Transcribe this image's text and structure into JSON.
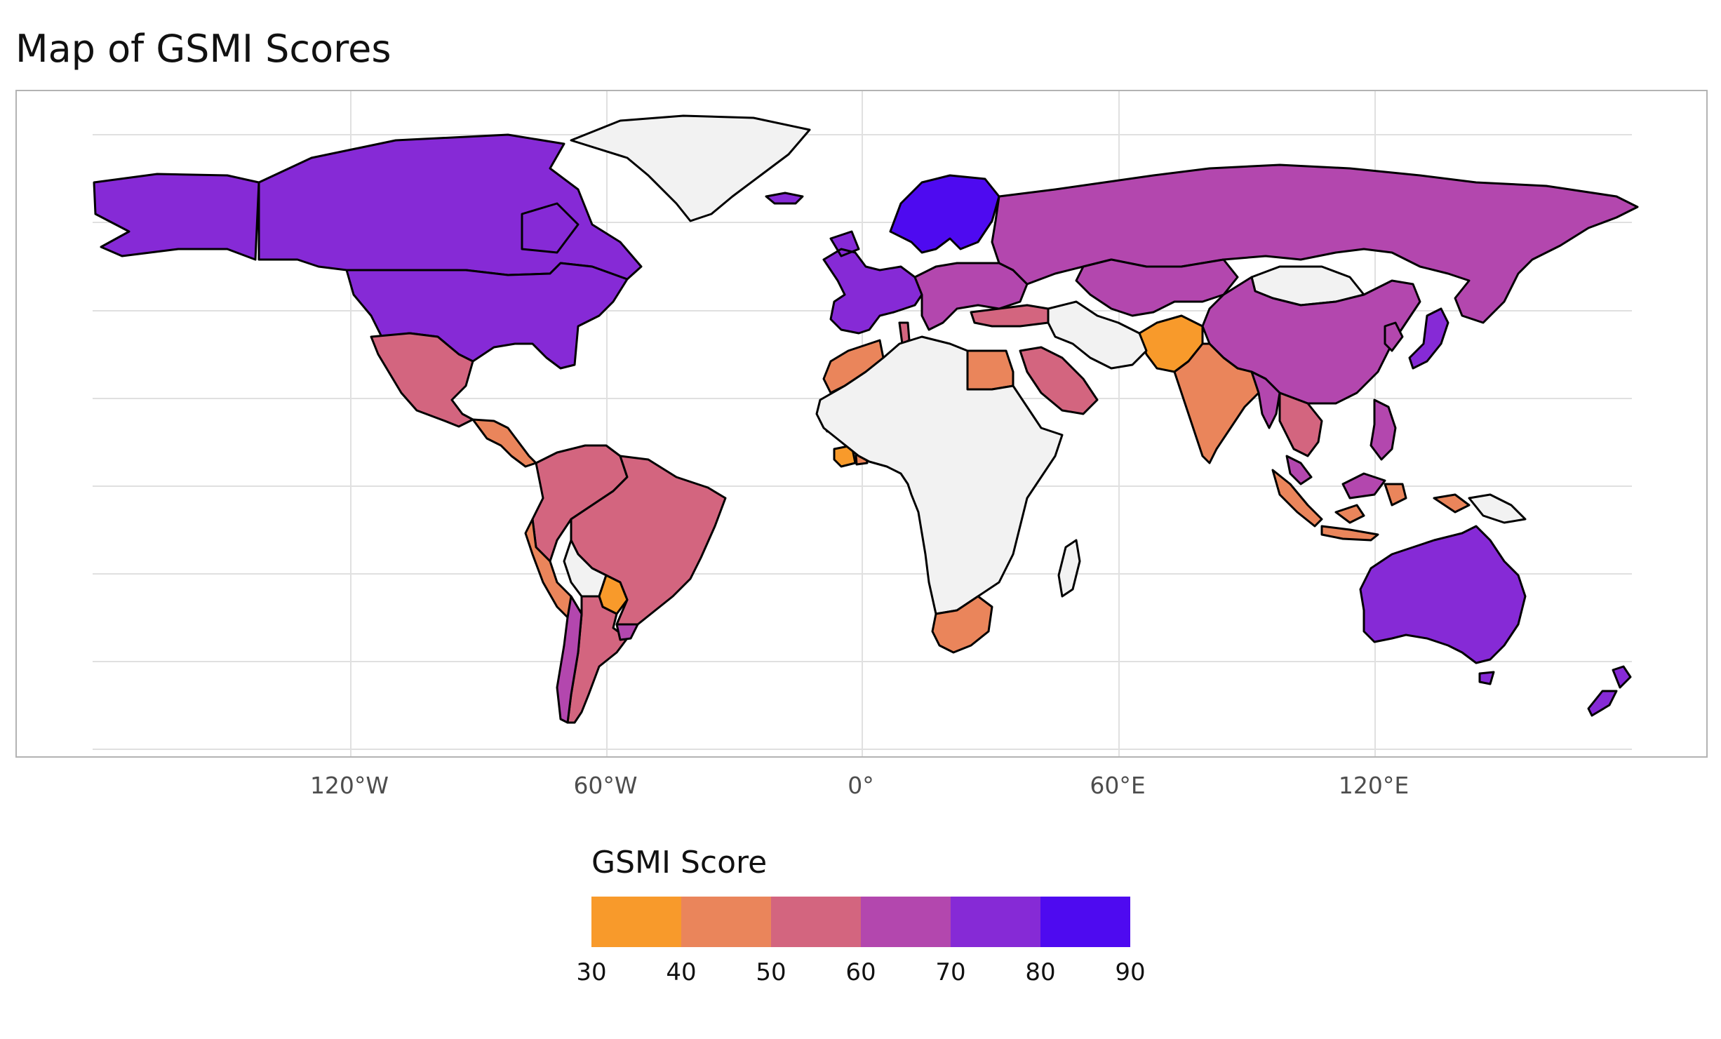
{
  "title": "Map of GSMI Scores",
  "map": {
    "projection": "equirectangular",
    "longitude_ticks": [
      "120°W",
      "60°W",
      "0°",
      "60°E",
      "120°E"
    ],
    "no_data_fill": "#f2f2f2",
    "border_color": "#000000",
    "grid_color": "#e0e0e0",
    "regions": [
      {
        "name": "Canada",
        "score_bin": "70-80"
      },
      {
        "name": "United States",
        "score_bin": "70-80"
      },
      {
        "name": "Alaska",
        "score_bin": "70-80"
      },
      {
        "name": "Greenland",
        "score_bin": "no data"
      },
      {
        "name": "Mexico",
        "score_bin": "50-60"
      },
      {
        "name": "Central America",
        "score_bin": "40-50"
      },
      {
        "name": "Colombia / Venezuela / Peru",
        "score_bin": "50-60"
      },
      {
        "name": "Ecuador / Peru coast",
        "score_bin": "40-50"
      },
      {
        "name": "Brazil",
        "score_bin": "50-60"
      },
      {
        "name": "Bolivia",
        "score_bin": "no data"
      },
      {
        "name": "Paraguay",
        "score_bin": "30-40"
      },
      {
        "name": "Argentina",
        "score_bin": "50-60"
      },
      {
        "name": "Chile",
        "score_bin": "60-70"
      },
      {
        "name": "Uruguay",
        "score_bin": "60-70"
      },
      {
        "name": "Western Europe",
        "score_bin": "70-80"
      },
      {
        "name": "Scandinavia",
        "score_bin": "80-90"
      },
      {
        "name": "Iceland",
        "score_bin": "70-80"
      },
      {
        "name": "Eastern Europe",
        "score_bin": "60-70"
      },
      {
        "name": "Turkey",
        "score_bin": "50-60"
      },
      {
        "name": "Russia",
        "score_bin": "60-70"
      },
      {
        "name": "Central Asia",
        "score_bin": "60-70"
      },
      {
        "name": "Mongolia",
        "score_bin": "no data"
      },
      {
        "name": "China",
        "score_bin": "60-70"
      },
      {
        "name": "Japan",
        "score_bin": "70-80"
      },
      {
        "name": "Korea",
        "score_bin": "60-70"
      },
      {
        "name": "Pakistan",
        "score_bin": "30-40"
      },
      {
        "name": "India",
        "score_bin": "40-50"
      },
      {
        "name": "Middle East / Iran",
        "score_bin": "no data"
      },
      {
        "name": "Saudi Arabia",
        "score_bin": "50-60"
      },
      {
        "name": "Egypt",
        "score_bin": "40-50"
      },
      {
        "name": "Morocco",
        "score_bin": "40-50"
      },
      {
        "name": "Tunisia",
        "score_bin": "50-60"
      },
      {
        "name": "Senegal",
        "score_bin": "30-40"
      },
      {
        "name": "Côte d'Ivoire",
        "score_bin": "30-40"
      },
      {
        "name": "Ghana",
        "score_bin": "40-50"
      },
      {
        "name": "Cameroon",
        "score_bin": "30-40"
      },
      {
        "name": "Rest of Africa",
        "score_bin": "no data"
      },
      {
        "name": "South Africa",
        "score_bin": "40-50"
      },
      {
        "name": "Madagascar",
        "score_bin": "no data"
      },
      {
        "name": "Southeast Asia",
        "score_bin": "50-60"
      },
      {
        "name": "Myanmar / Bangladesh",
        "score_bin": "60-70"
      },
      {
        "name": "Malaysia",
        "score_bin": "60-70"
      },
      {
        "name": "Philippines",
        "score_bin": "60-70"
      },
      {
        "name": "Indonesia",
        "score_bin": "40-50"
      },
      {
        "name": "Papua New Guinea",
        "score_bin": "no data"
      },
      {
        "name": "Australia",
        "score_bin": "70-80"
      },
      {
        "name": "New Zealand",
        "score_bin": "70-80"
      }
    ]
  },
  "legend": {
    "title": "GSMI Score",
    "breaks": [
      "30",
      "40",
      "50",
      "60",
      "70",
      "80",
      "90"
    ],
    "bins": [
      {
        "label": "30-40",
        "color": "#f89a2b"
      },
      {
        "label": "40-50",
        "color": "#ea855b"
      },
      {
        "label": "50-60",
        "color": "#d3657f"
      },
      {
        "label": "60-70",
        "color": "#b347ae"
      },
      {
        "label": "70-80",
        "color": "#862ad6"
      },
      {
        "label": "80-90",
        "color": "#4e0af0"
      }
    ]
  }
}
